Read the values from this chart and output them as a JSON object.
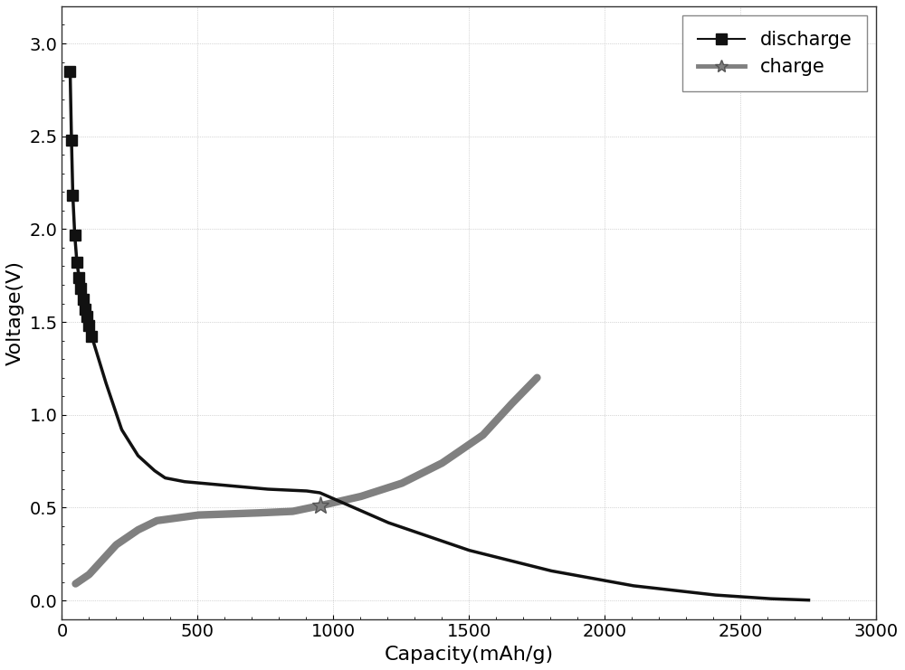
{
  "title": "",
  "xlabel": "Capacity(mAh/g)",
  "ylabel": "Voltage(V)",
  "xlim": [
    0,
    3000
  ],
  "ylim": [
    -0.1,
    3.2
  ],
  "xticks": [
    0,
    500,
    1000,
    1500,
    2000,
    2500,
    3000
  ],
  "yticks": [
    0.0,
    0.5,
    1.0,
    1.5,
    2.0,
    2.5,
    3.0
  ],
  "background_color": "#ffffff",
  "plot_bg_color": "#ffffff",
  "discharge_color": "#111111",
  "charge_color": "#808080",
  "legend_discharge_label": "discharge",
  "legend_charge_label": "charge",
  "xlabel_fontsize": 16,
  "ylabel_fontsize": 16,
  "tick_fontsize": 14,
  "discharge_marker_x": [
    30,
    35,
    40,
    47,
    55,
    63,
    70,
    78,
    85,
    92,
    100,
    110
  ],
  "discharge_marker_y": [
    2.85,
    2.48,
    2.18,
    1.97,
    1.82,
    1.74,
    1.68,
    1.62,
    1.57,
    1.53,
    1.48,
    1.42
  ]
}
